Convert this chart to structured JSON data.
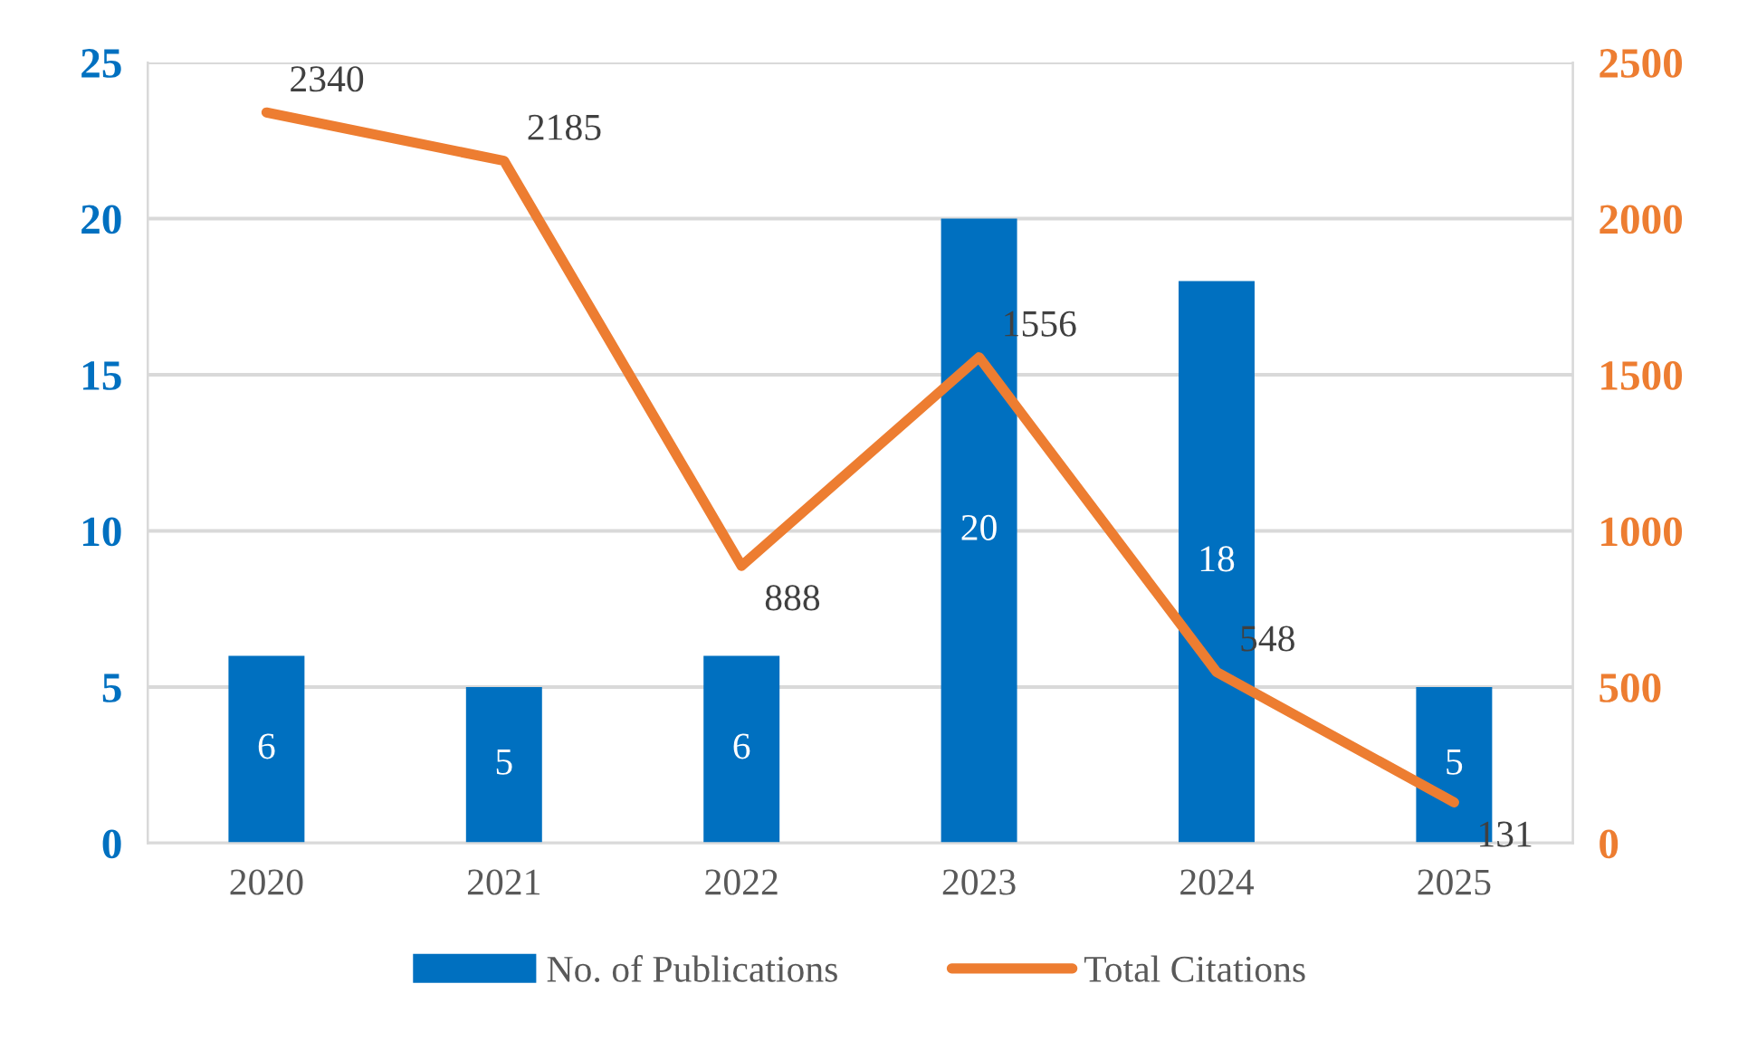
{
  "chart_data": {
    "type": "bar",
    "categories": [
      "2020",
      "2021",
      "2022",
      "2023",
      "2024",
      "2025"
    ],
    "series": [
      {
        "name": "No. of Publications",
        "color": "#0070c0",
        "values": [
          6,
          5,
          6,
          20,
          18,
          5
        ]
      },
      {
        "name": "Total Citations",
        "type": "line",
        "axis": "y2",
        "color": "#ed7d31",
        "values": [
          2340,
          2185,
          888,
          1556,
          548,
          131
        ]
      }
    ],
    "ylim": [
      0,
      25
    ],
    "yticks": [
      0,
      5,
      10,
      15,
      20,
      25
    ],
    "y2lim": [
      0,
      2500
    ],
    "y2ticks": [
      0,
      500,
      1000,
      1500,
      2000,
      2500
    ],
    "data_labels": true,
    "grid": "y",
    "legend": "bottom",
    "marker": "none",
    "line_style": "solid"
  }
}
